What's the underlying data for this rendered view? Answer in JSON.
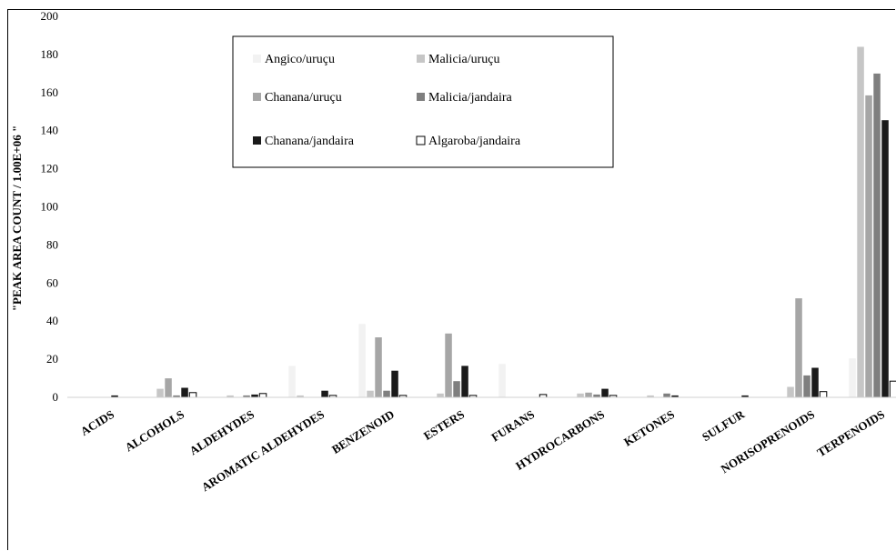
{
  "chart_data": {
    "type": "bar",
    "ylabel": "\"PEAK AREA COUNT / 1.00E+06 \"",
    "ylim": [
      0,
      200
    ],
    "yticks": [
      0,
      20,
      40,
      60,
      80,
      100,
      120,
      140,
      160,
      180,
      200
    ],
    "legend_position": "top-center",
    "grid": false,
    "categories": [
      "ACIDS",
      "ALCOHOLS",
      "ALDEHYDES",
      "AROMATIC ALDEHYDES",
      "BENZENOID",
      "ESTERS",
      "FURANS",
      "HYDROCARBONS",
      "KETONES",
      "SULFUR",
      "NORISOPRENOIDS",
      "TERPENOIDS"
    ],
    "series": [
      {
        "name": "Angico/uruçu",
        "color": "#f2f2f2",
        "values": [
          0,
          0,
          0,
          16.5,
          38.5,
          0,
          17.5,
          0,
          0,
          0,
          0,
          20.5
        ]
      },
      {
        "name": "Malicia/uruçu",
        "color": "#c6c6c6",
        "values": [
          0,
          4.5,
          1.0,
          1.0,
          3.5,
          2.0,
          0,
          2.0,
          1.0,
          0,
          5.5,
          184
        ]
      },
      {
        "name": "Chanana/uruçu",
        "color": "#a6a6a6",
        "values": [
          0,
          10.0,
          0,
          0,
          31.5,
          33.5,
          0,
          2.5,
          0,
          0,
          52,
          158.5
        ]
      },
      {
        "name": "Malicia/jandaira",
        "color": "#7f7f7f",
        "values": [
          0,
          1.0,
          1.0,
          0,
          3.5,
          8.5,
          0,
          1.5,
          2.0,
          0,
          11.5,
          170
        ]
      },
      {
        "name": "Chanana/jandaira",
        "color": "#1a1a1a",
        "values": [
          1.0,
          5.0,
          1.5,
          3.5,
          14.0,
          16.5,
          0,
          4.5,
          1.0,
          1.0,
          15.5,
          145.5
        ]
      },
      {
        "name": "Algaroba/jandaira",
        "color": "#ffffff",
        "values": [
          0,
          2.5,
          2.0,
          1.0,
          1.0,
          1.0,
          1.5,
          1.0,
          0,
          0,
          3.0,
          8.5
        ]
      }
    ]
  }
}
